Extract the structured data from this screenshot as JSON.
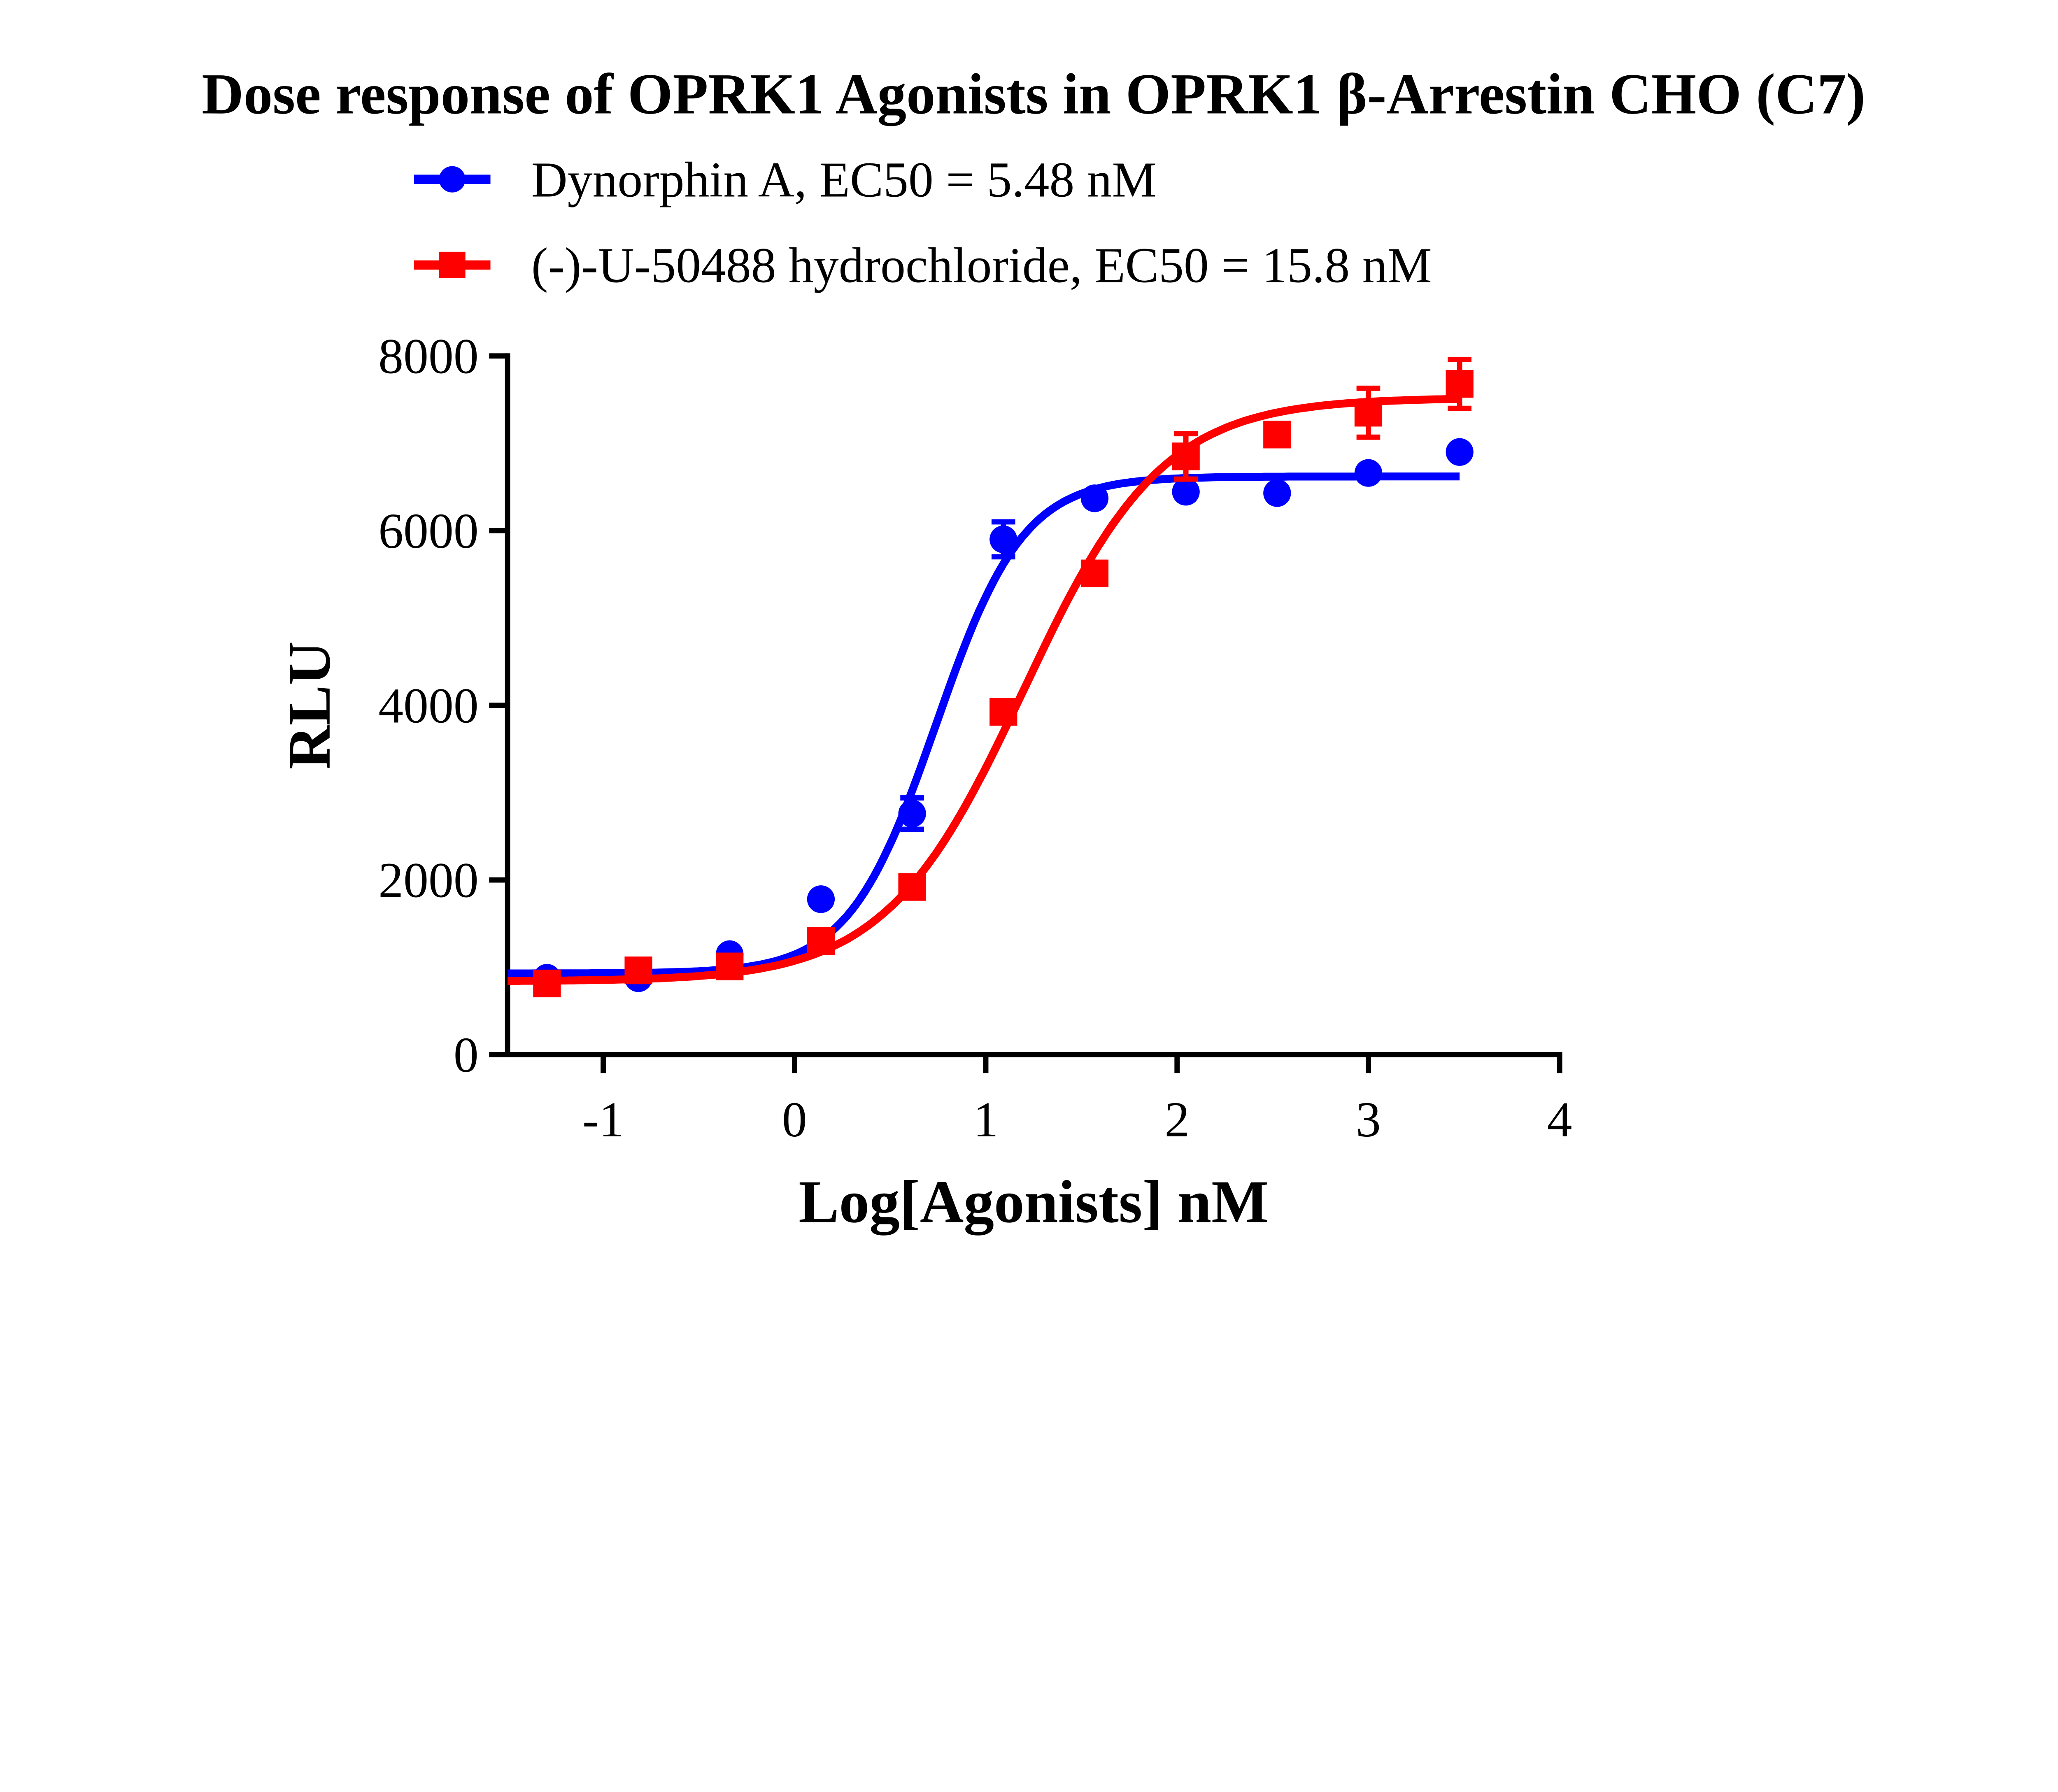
{
  "chart_data": {
    "type": "line",
    "title": "Dose response of OPRK1 Agonists in OPRK1 β-Arrestin CHO (C7)",
    "xlabel": "Log[Agonists] nM",
    "ylabel": "RLU",
    "xlim": [
      -1.5,
      4
    ],
    "ylim": [
      0,
      8000
    ],
    "xticks": [
      -1,
      0,
      1,
      2,
      3,
      4
    ],
    "yticks": [
      0,
      2000,
      4000,
      6000,
      8000
    ],
    "grid": false,
    "legend_position": "top",
    "series": [
      {
        "name": "Dynorphin A, EC50 = 5.48 nM",
        "color": "#0000ff",
        "marker": "circle",
        "x": [
          -1.294,
          -0.816,
          -0.339,
          0.138,
          0.615,
          1.092,
          1.569,
          2.046,
          2.523,
          3.0,
          3.477
        ],
        "y": [
          880,
          875,
          1150,
          1780,
          2760,
          5900,
          6370,
          6445,
          6430,
          6660,
          6900
        ],
        "error": [
          0,
          0,
          0,
          0,
          180,
          200,
          0,
          0,
          0,
          0,
          0
        ],
        "fit": {
          "bottom": 930,
          "top": 6620,
          "logEC50": 0.739,
          "hill": 1.9
        }
      },
      {
        "name": "(-)-U-50488 hydrochloride, EC50 = 15.8 nM",
        "color": "#ff0000",
        "marker": "square",
        "x": [
          -1.294,
          -0.816,
          -0.339,
          0.138,
          0.615,
          1.092,
          1.569,
          2.046,
          2.523,
          3.0,
          3.477
        ],
        "y": [
          815,
          965,
          1010,
          1300,
          1920,
          3925,
          5510,
          6850,
          7100,
          7350,
          7680
        ],
        "error": [
          0,
          0,
          0,
          0,
          0,
          0,
          120,
          260,
          0,
          280,
          280
        ],
        "fit": {
          "bottom": 840,
          "top": 7520,
          "logEC50": 1.199,
          "hill": 1.2
        }
      }
    ]
  }
}
